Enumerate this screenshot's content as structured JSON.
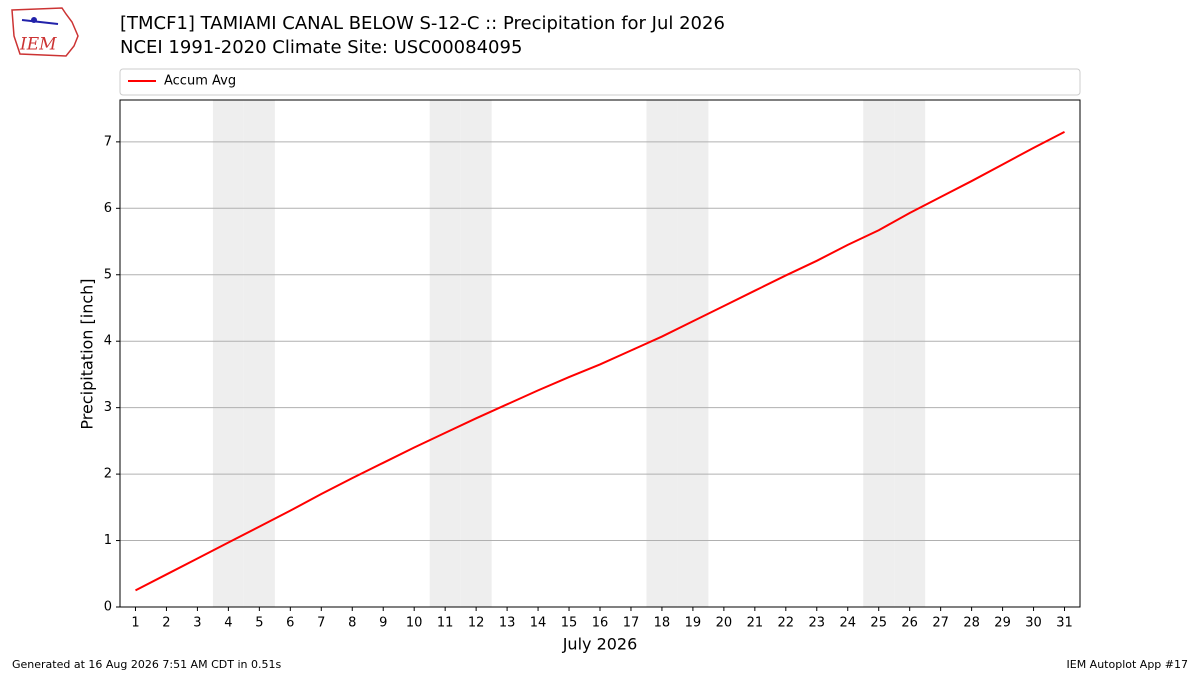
{
  "logo_text": "IEM",
  "footer_left": "Generated at 16 Aug 2026 7:51 AM CDT in 0.51s",
  "footer_right": "IEM Autoplot App #17",
  "chart_data": {
    "type": "line",
    "title": "[TMCF1] TAMIAMI CANAL BELOW S-12-C :: Precipitation for Jul 2026",
    "subtitle": "NCEI 1991-2020 Climate Site: USC00084095",
    "x_label": "July 2026",
    "y_label": "Precipitation [inch]",
    "x": [
      1,
      2,
      3,
      4,
      5,
      6,
      7,
      8,
      9,
      10,
      11,
      12,
      13,
      14,
      15,
      16,
      17,
      18,
      19,
      20,
      21,
      22,
      23,
      24,
      25,
      26,
      27,
      28,
      29,
      30,
      31
    ],
    "series": [
      {
        "name": "Accum Avg",
        "color": "#ff0000",
        "values": [
          0.25,
          0.49,
          0.73,
          0.97,
          1.21,
          1.45,
          1.7,
          1.94,
          2.17,
          2.4,
          2.62,
          2.84,
          3.05,
          3.26,
          3.46,
          3.65,
          3.86,
          4.07,
          4.3,
          4.53,
          4.76,
          4.99,
          5.21,
          5.45,
          5.67,
          5.93,
          6.17,
          6.41,
          6.66,
          6.91,
          7.15
        ]
      }
    ],
    "shaded_days": [
      4,
      5,
      11,
      12,
      18,
      19,
      25,
      26
    ],
    "shade_color": "#eeeeee",
    "xlim": [
      0.5,
      31.5
    ],
    "ylim": [
      0,
      7.63
    ],
    "xticks": [
      1,
      2,
      3,
      4,
      5,
      6,
      7,
      8,
      9,
      10,
      11,
      12,
      13,
      14,
      15,
      16,
      17,
      18,
      19,
      20,
      21,
      22,
      23,
      24,
      25,
      26,
      27,
      28,
      29,
      30,
      31
    ],
    "yticks": [
      0,
      1,
      2,
      3,
      4,
      5,
      6,
      7
    ],
    "grid": true,
    "legend": "top"
  }
}
